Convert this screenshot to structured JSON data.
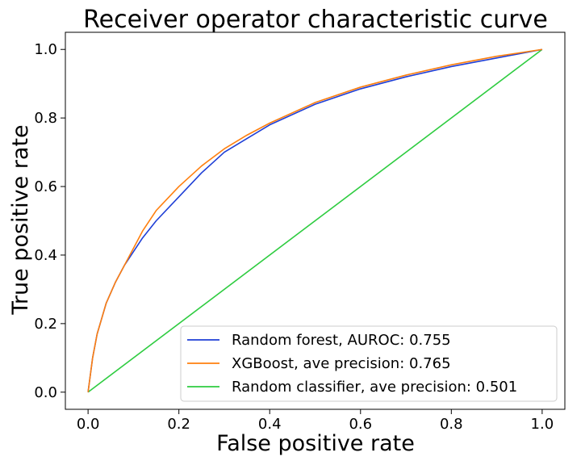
{
  "chart_data": {
    "type": "line",
    "title": "Receiver operator characteristic curve",
    "xlabel": "False positive rate",
    "ylabel": "True positive rate",
    "xlim": [
      -0.05,
      1.05
    ],
    "ylim": [
      -0.05,
      1.05
    ],
    "grid": false,
    "legend_placement": "lower right",
    "x_ticks": [
      0.0,
      0.2,
      0.4,
      0.6,
      0.8,
      1.0
    ],
    "y_ticks": [
      0.0,
      0.2,
      0.4,
      0.6,
      0.8,
      1.0
    ],
    "x_tick_labels": [
      "0.0",
      "0.2",
      "0.4",
      "0.6",
      "0.8",
      "1.0"
    ],
    "y_tick_labels": [
      "0.0",
      "0.2",
      "0.4",
      "0.6",
      "0.8",
      "1.0"
    ],
    "series": [
      {
        "name": "Random forest, AUROC: 0.755",
        "color": "#1f3fd6",
        "x": [
          0.0,
          0.01,
          0.02,
          0.04,
          0.06,
          0.08,
          0.1,
          0.12,
          0.15,
          0.2,
          0.25,
          0.3,
          0.35,
          0.4,
          0.5,
          0.6,
          0.7,
          0.8,
          0.9,
          1.0
        ],
        "y": [
          0.0,
          0.1,
          0.17,
          0.26,
          0.32,
          0.37,
          0.41,
          0.45,
          0.5,
          0.57,
          0.64,
          0.7,
          0.74,
          0.78,
          0.84,
          0.885,
          0.92,
          0.95,
          0.975,
          1.0
        ]
      },
      {
        "name": "XGBoost, ave precision: 0.765",
        "color": "#ff7f0e",
        "x": [
          0.0,
          0.01,
          0.02,
          0.04,
          0.06,
          0.08,
          0.1,
          0.12,
          0.15,
          0.2,
          0.25,
          0.3,
          0.35,
          0.4,
          0.5,
          0.6,
          0.7,
          0.8,
          0.9,
          1.0
        ],
        "y": [
          0.0,
          0.1,
          0.17,
          0.26,
          0.32,
          0.37,
          0.42,
          0.47,
          0.53,
          0.6,
          0.66,
          0.71,
          0.75,
          0.785,
          0.845,
          0.89,
          0.925,
          0.955,
          0.98,
          1.0
        ]
      },
      {
        "name": "Random classifier, ave precision: 0.501",
        "color": "#2ecc40",
        "x": [
          0.0,
          1.0
        ],
        "y": [
          0.0,
          1.0
        ]
      }
    ]
  }
}
